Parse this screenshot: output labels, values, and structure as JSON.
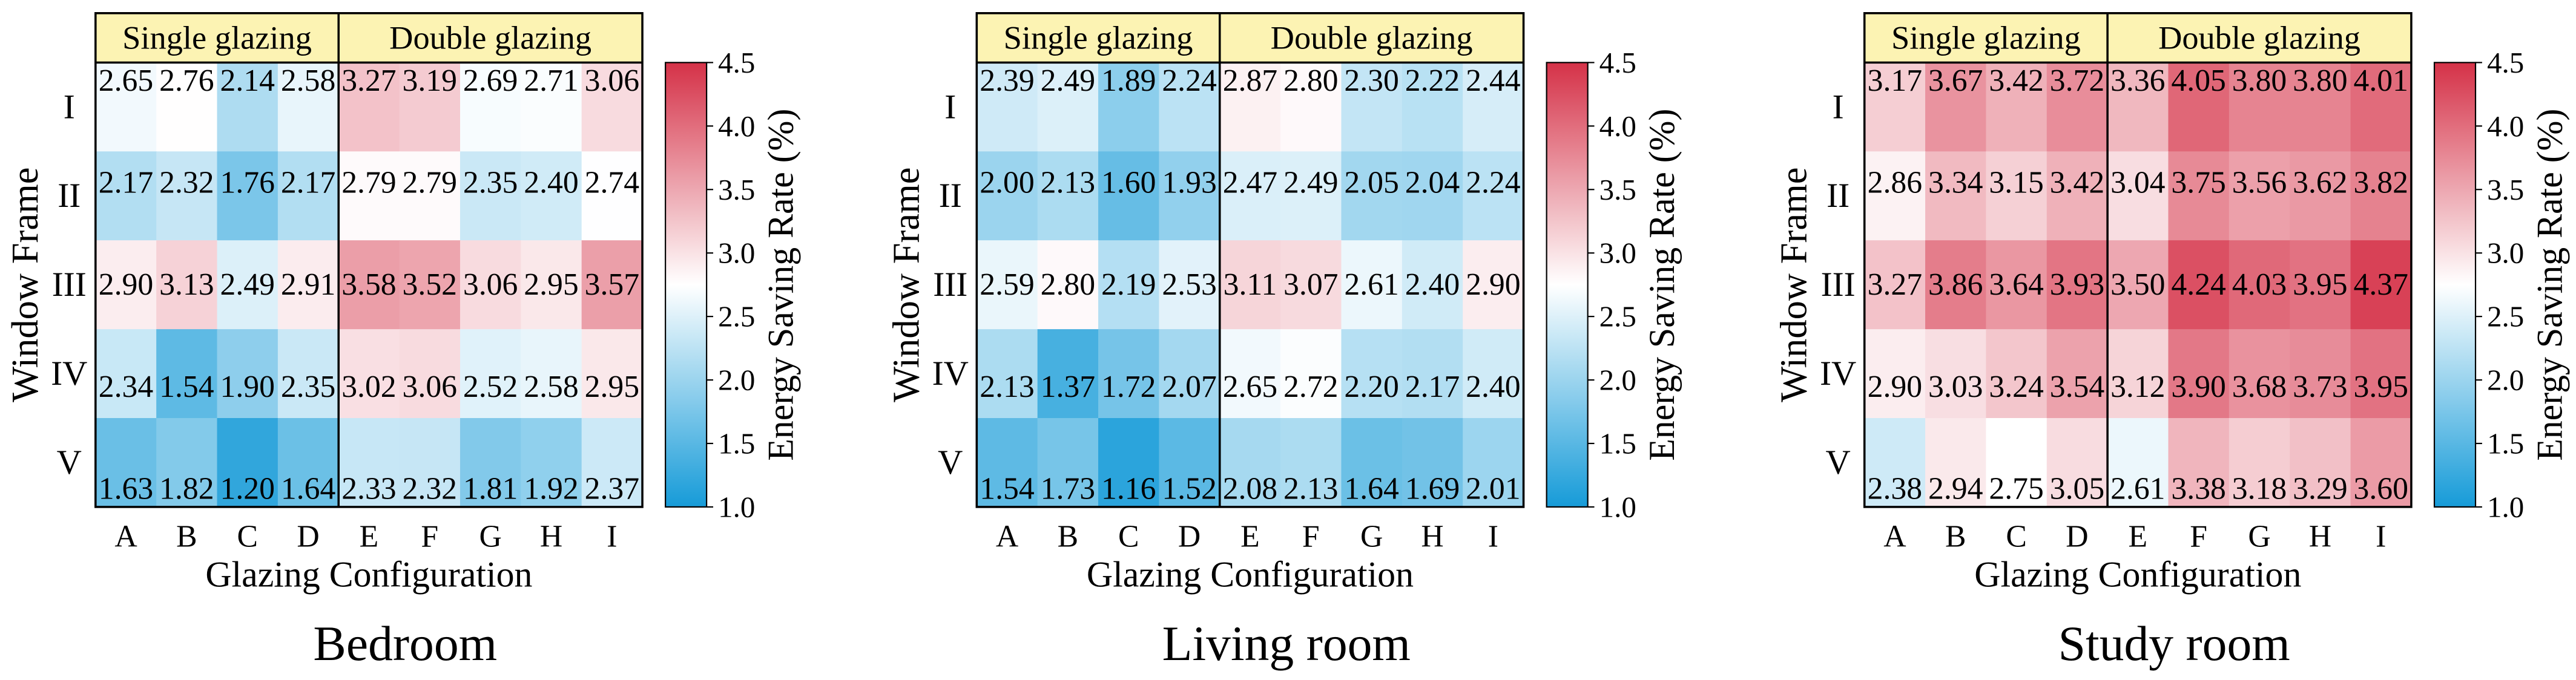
{
  "chart_data": [
    {
      "type": "heatmap",
      "title": "Bedroom",
      "xlabel": "Glazing Configuration",
      "ylabel": "Window Frame",
      "x_categories": [
        "A",
        "B",
        "C",
        "D",
        "E",
        "F",
        "G",
        "H",
        "I"
      ],
      "y_categories": [
        "I",
        "II",
        "III",
        "IV",
        "V"
      ],
      "column_groups": [
        {
          "label": "Single glazing",
          "columns": [
            "A",
            "B",
            "C",
            "D"
          ]
        },
        {
          "label": "Double glazing",
          "columns": [
            "E",
            "F",
            "G",
            "H",
            "I"
          ]
        }
      ],
      "group_header_color": "#fcf3b3",
      "values": [
        [
          2.65,
          2.76,
          2.14,
          2.58,
          3.27,
          3.19,
          2.69,
          2.71,
          3.06
        ],
        [
          2.17,
          2.32,
          1.76,
          2.17,
          2.79,
          2.79,
          2.35,
          2.4,
          2.74
        ],
        [
          2.9,
          3.13,
          2.49,
          2.91,
          3.58,
          3.52,
          3.06,
          2.95,
          3.57
        ],
        [
          2.34,
          1.54,
          1.9,
          2.35,
          3.02,
          3.06,
          2.52,
          2.58,
          2.95
        ],
        [
          1.63,
          1.82,
          1.2,
          1.64,
          2.33,
          2.32,
          1.81,
          1.92,
          2.37
        ]
      ],
      "colorbar": {
        "label": "Energy Saving Rate (%)",
        "range": [
          1.0,
          4.5
        ],
        "ticks": [
          1.0,
          1.5,
          2.0,
          2.5,
          3.0,
          3.5,
          4.0,
          4.5
        ],
        "colors": {
          "low": "#169bd8",
          "mid": "#ffffff",
          "high": "#d53248"
        }
      }
    },
    {
      "type": "heatmap",
      "title": "Living room",
      "xlabel": "Glazing Configuration",
      "ylabel": "Window Frame",
      "x_categories": [
        "A",
        "B",
        "C",
        "D",
        "E",
        "F",
        "G",
        "H",
        "I"
      ],
      "y_categories": [
        "I",
        "II",
        "III",
        "IV",
        "V"
      ],
      "column_groups": [
        {
          "label": "Single glazing",
          "columns": [
            "A",
            "B",
            "C",
            "D"
          ]
        },
        {
          "label": "Double glazing",
          "columns": [
            "E",
            "F",
            "G",
            "H",
            "I"
          ]
        }
      ],
      "group_header_color": "#fcf3b3",
      "values": [
        [
          2.39,
          2.49,
          1.89,
          2.24,
          2.87,
          2.8,
          2.3,
          2.22,
          2.44
        ],
        [
          2.0,
          2.13,
          1.6,
          1.93,
          2.47,
          2.49,
          2.05,
          2.04,
          2.24
        ],
        [
          2.59,
          2.8,
          2.19,
          2.53,
          3.11,
          3.07,
          2.61,
          2.4,
          2.9
        ],
        [
          2.13,
          1.37,
          1.72,
          2.07,
          2.65,
          2.72,
          2.2,
          2.17,
          2.4
        ],
        [
          1.54,
          1.73,
          1.16,
          1.52,
          2.08,
          2.13,
          1.64,
          1.69,
          2.01
        ]
      ],
      "colorbar": {
        "label": "Energy Saving Rate (%)",
        "range": [
          1.0,
          4.5
        ],
        "ticks": [
          1.0,
          1.5,
          2.0,
          2.5,
          3.0,
          3.5,
          4.0,
          4.5
        ],
        "colors": {
          "low": "#169bd8",
          "mid": "#ffffff",
          "high": "#d53248"
        }
      }
    },
    {
      "type": "heatmap",
      "title": "Study room",
      "xlabel": "Glazing Configuration",
      "ylabel": "Window Frame",
      "x_categories": [
        "A",
        "B",
        "C",
        "D",
        "E",
        "F",
        "G",
        "H",
        "I"
      ],
      "y_categories": [
        "I",
        "II",
        "III",
        "IV",
        "V"
      ],
      "column_groups": [
        {
          "label": "Single glazing",
          "columns": [
            "A",
            "B",
            "C",
            "D"
          ]
        },
        {
          "label": "Double glazing",
          "columns": [
            "E",
            "F",
            "G",
            "H",
            "I"
          ]
        }
      ],
      "group_header_color": "#fcf3b3",
      "values": [
        [
          3.17,
          3.67,
          3.42,
          3.72,
          3.36,
          4.05,
          3.8,
          3.8,
          4.01
        ],
        [
          2.86,
          3.34,
          3.15,
          3.42,
          3.04,
          3.75,
          3.56,
          3.62,
          3.82
        ],
        [
          3.27,
          3.86,
          3.64,
          3.93,
          3.5,
          4.24,
          4.03,
          3.95,
          4.37
        ],
        [
          2.9,
          3.03,
          3.24,
          3.54,
          3.12,
          3.9,
          3.68,
          3.73,
          3.95
        ],
        [
          2.38,
          2.94,
          2.75,
          3.05,
          2.61,
          3.38,
          3.18,
          3.29,
          3.6
        ]
      ],
      "colorbar": {
        "label": "Energy Saving Rate (%)",
        "range": [
          1.0,
          4.5
        ],
        "ticks": [
          1.0,
          1.5,
          2.0,
          2.5,
          3.0,
          3.5,
          4.0,
          4.5
        ],
        "colors": {
          "low": "#169bd8",
          "mid": "#ffffff",
          "high": "#d53248"
        }
      }
    }
  ]
}
